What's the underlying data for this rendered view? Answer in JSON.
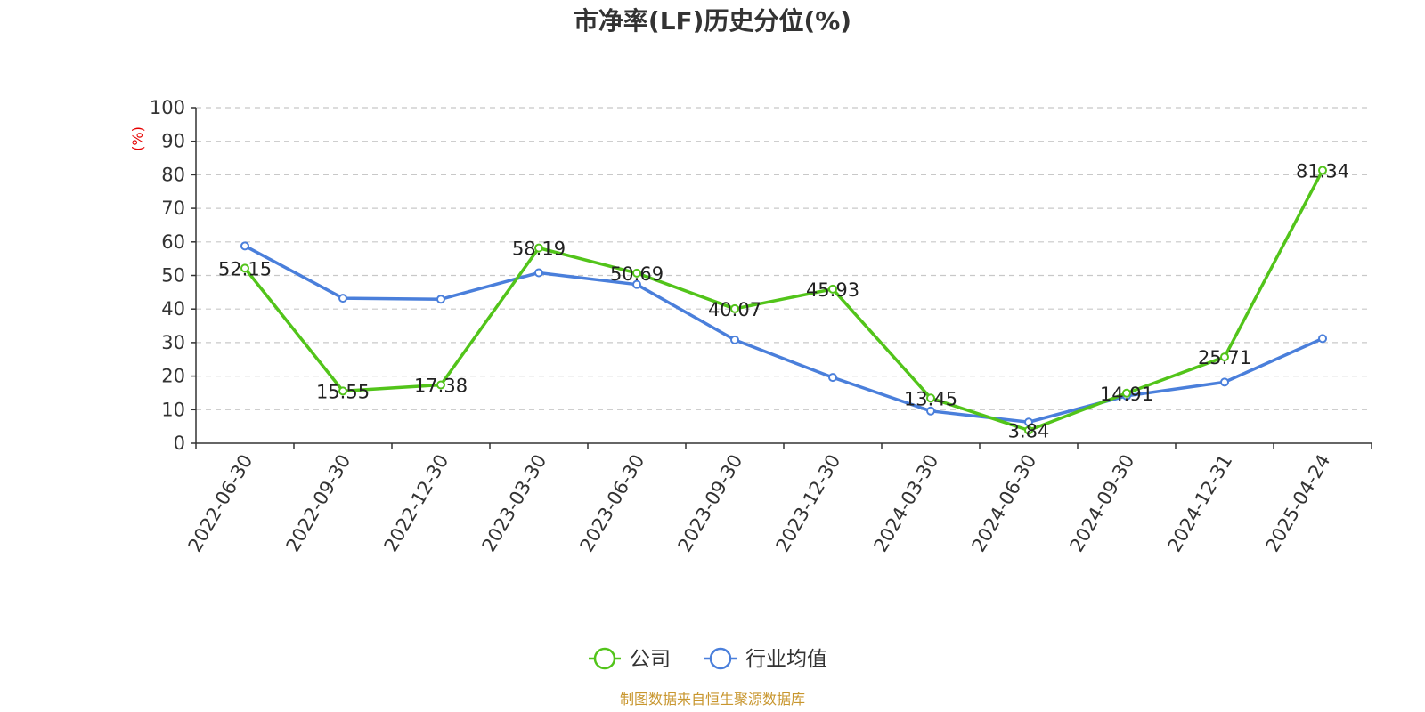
{
  "chart_data": {
    "type": "line",
    "title": "市净率(LF)历史分位(%)",
    "ylabel": "(%)",
    "ylim": [
      0,
      100
    ],
    "yticks": [
      0,
      10,
      20,
      30,
      40,
      50,
      60,
      70,
      80,
      90,
      100
    ],
    "categories": [
      "2022-06-30",
      "2022-09-30",
      "2022-12-30",
      "2023-03-30",
      "2023-06-30",
      "2023-09-30",
      "2023-12-30",
      "2024-03-30",
      "2024-06-30",
      "2024-09-30",
      "2024-12-31",
      "2025-04-24"
    ],
    "series": [
      {
        "name": "公司",
        "color": "#52c41a",
        "values": [
          52.15,
          15.55,
          17.38,
          58.19,
          50.69,
          40.07,
          45.93,
          13.45,
          3.84,
          14.91,
          25.71,
          81.34
        ],
        "labels": [
          "52.15",
          "15.55",
          "17.38",
          "58.19",
          "50.69",
          "40.07",
          "45.93",
          "13.45",
          "3.84",
          "14.91",
          "25.71",
          "81.34"
        ]
      },
      {
        "name": "行业均值",
        "color": "#4a7fdb",
        "values": [
          58.8,
          43.2,
          42.9,
          50.8,
          47.3,
          30.8,
          19.6,
          9.6,
          6.3,
          14.1,
          18.2,
          31.2
        ]
      }
    ],
    "grid": "horizontal dashed",
    "legend_position": "bottom-center"
  },
  "unit_color": "#e60000",
  "source_text": "制图数据来自恒生聚源数据库",
  "source_color": "#c8962e"
}
